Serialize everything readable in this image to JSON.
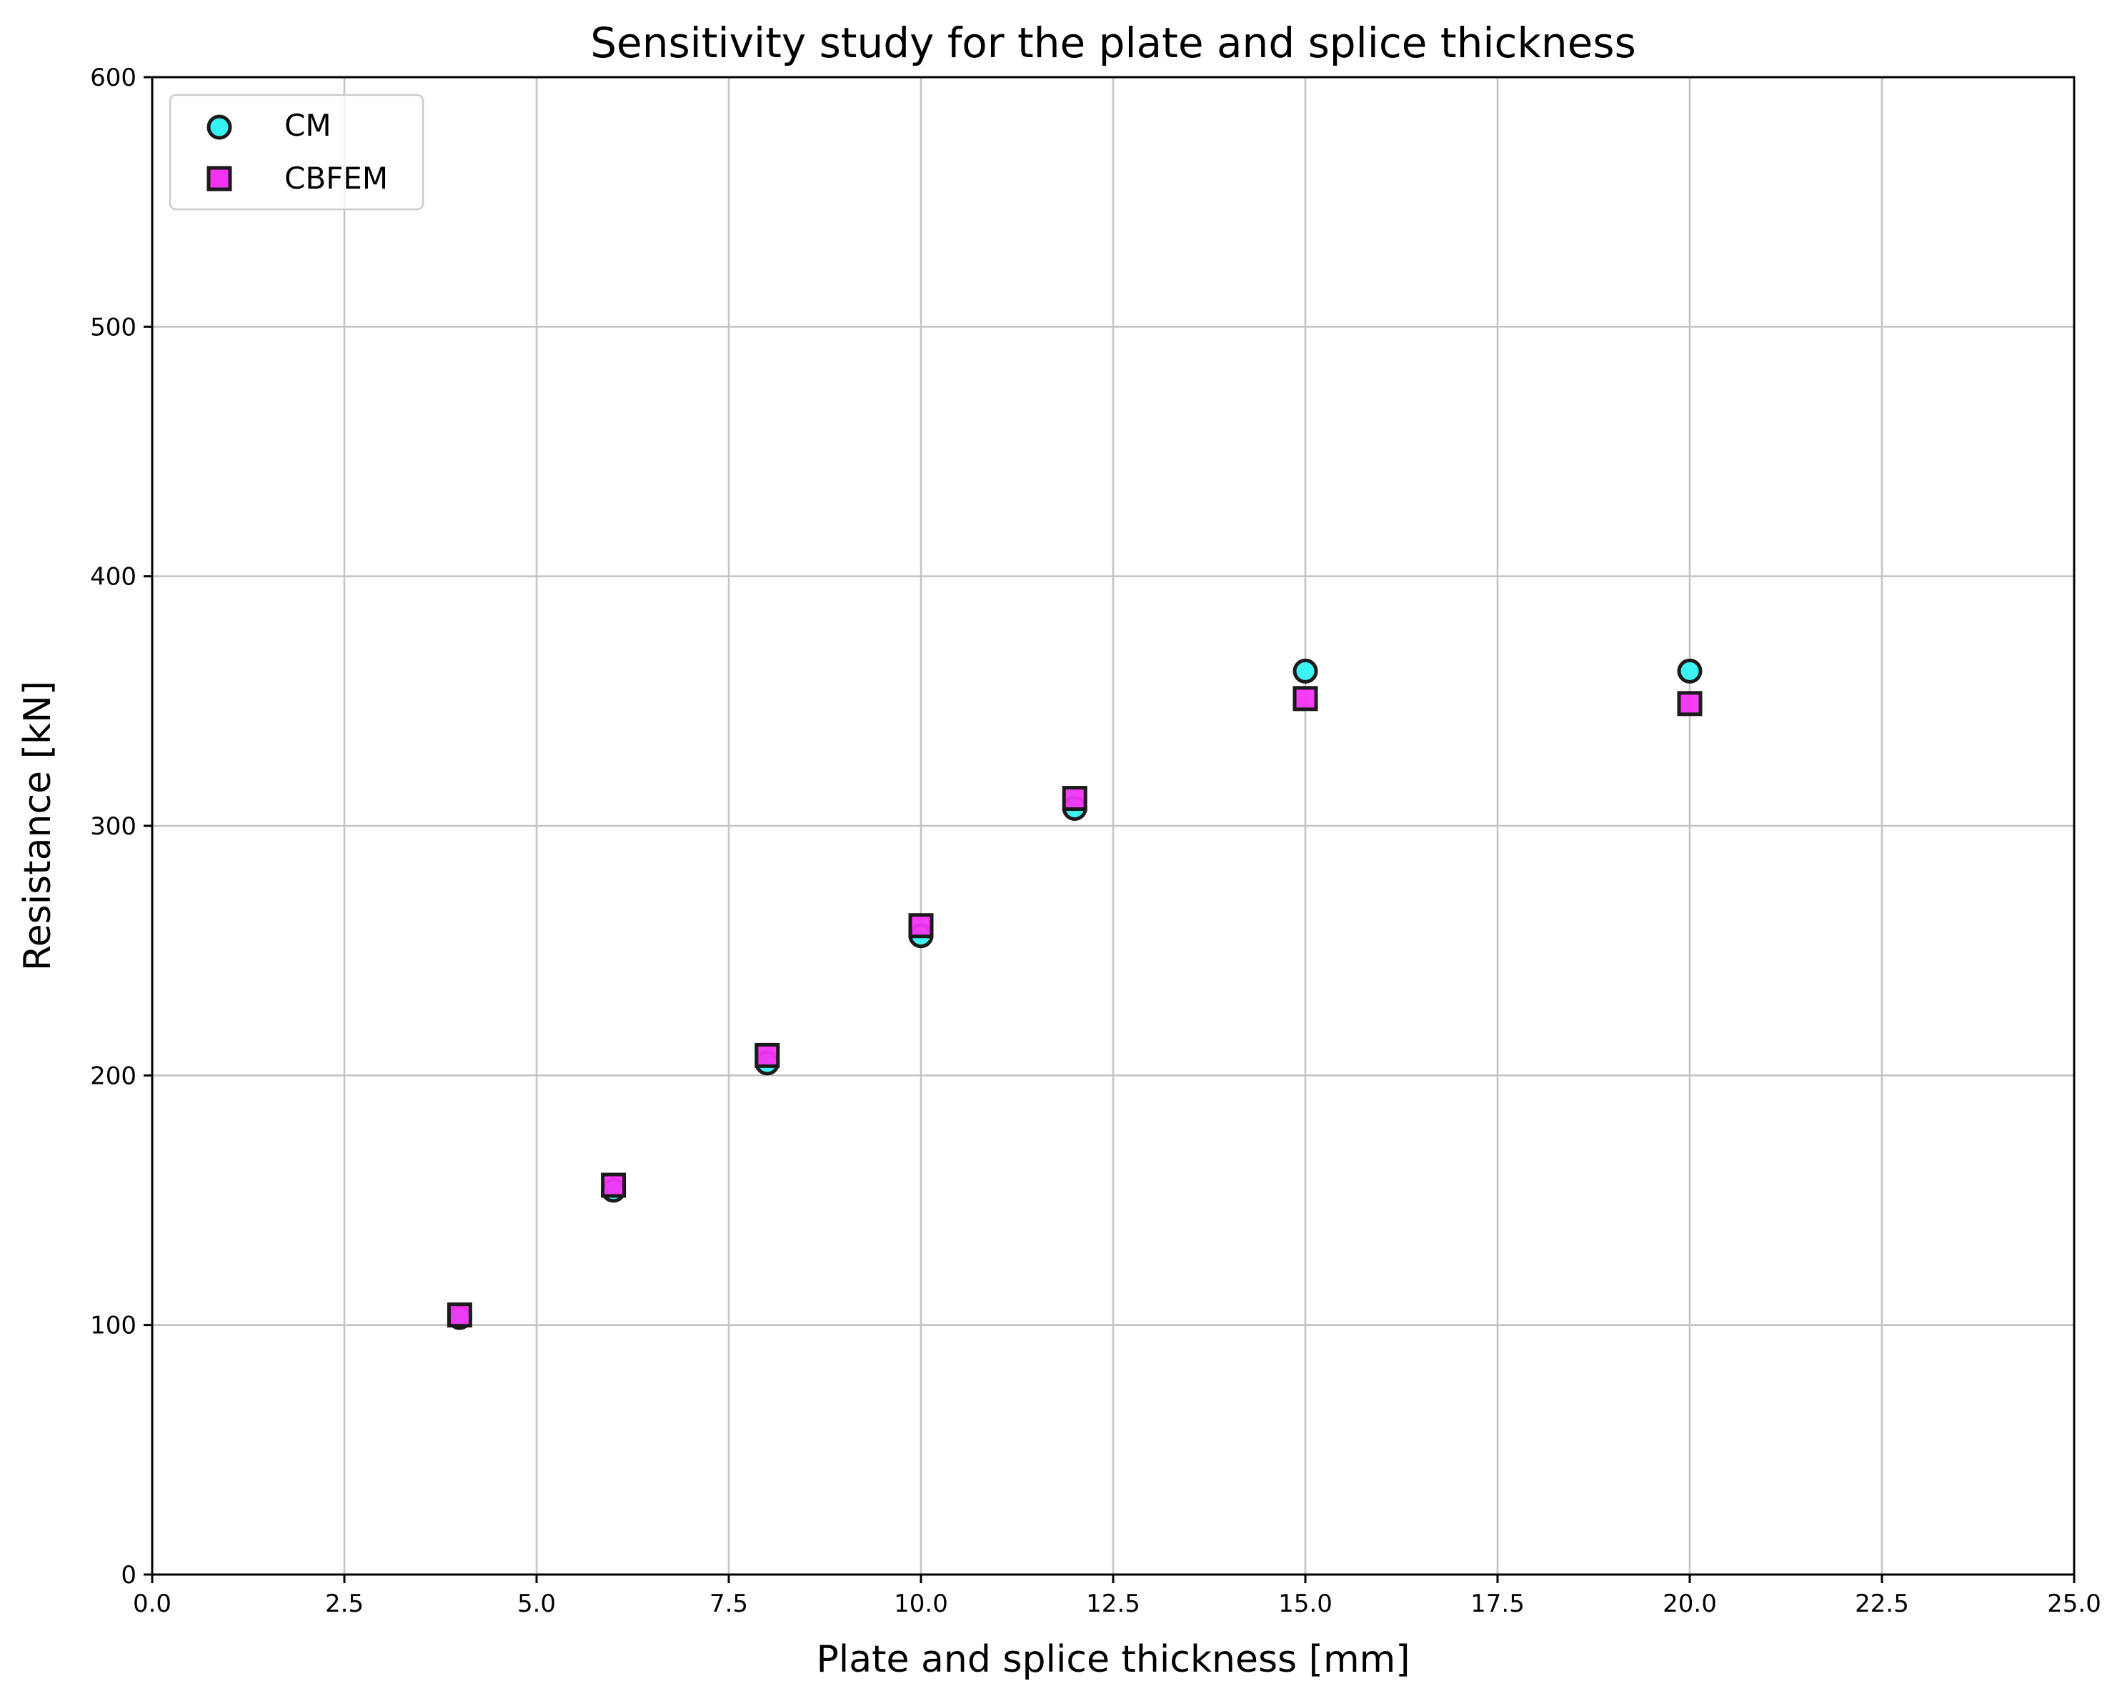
{
  "chart_data": {
    "type": "scatter",
    "title": "Sensitivity study for the plate and splice thickness",
    "xlabel": "Plate and splice thickness [mm]",
    "ylabel": "Resistance [kN]",
    "xlim": [
      0,
      25
    ],
    "ylim": [
      0,
      600
    ],
    "xticks": [
      "0.0",
      "2.5",
      "5.0",
      "7.5",
      "10.0",
      "12.5",
      "15.0",
      "17.5",
      "20.0",
      "22.5",
      "25.0"
    ],
    "yticks": [
      "0",
      "100",
      "200",
      "300",
      "400",
      "500",
      "600"
    ],
    "grid": true,
    "legend_position": "top-left",
    "series": [
      {
        "name": "CM",
        "marker": "circle",
        "color": "#33f3f3",
        "edge_color": "#1a1a1a",
        "x": [
          4,
          6,
          8,
          10,
          12,
          15,
          20
        ],
        "y": [
          103,
          154,
          205,
          256,
          307,
          362,
          362
        ]
      },
      {
        "name": "CBFEM",
        "marker": "square",
        "color": "#f333f3",
        "edge_color": "#1a1a1a",
        "x": [
          4,
          6,
          8,
          10,
          12,
          15,
          20
        ],
        "y": [
          104,
          156,
          208,
          260,
          311,
          351,
          349
        ]
      }
    ]
  }
}
